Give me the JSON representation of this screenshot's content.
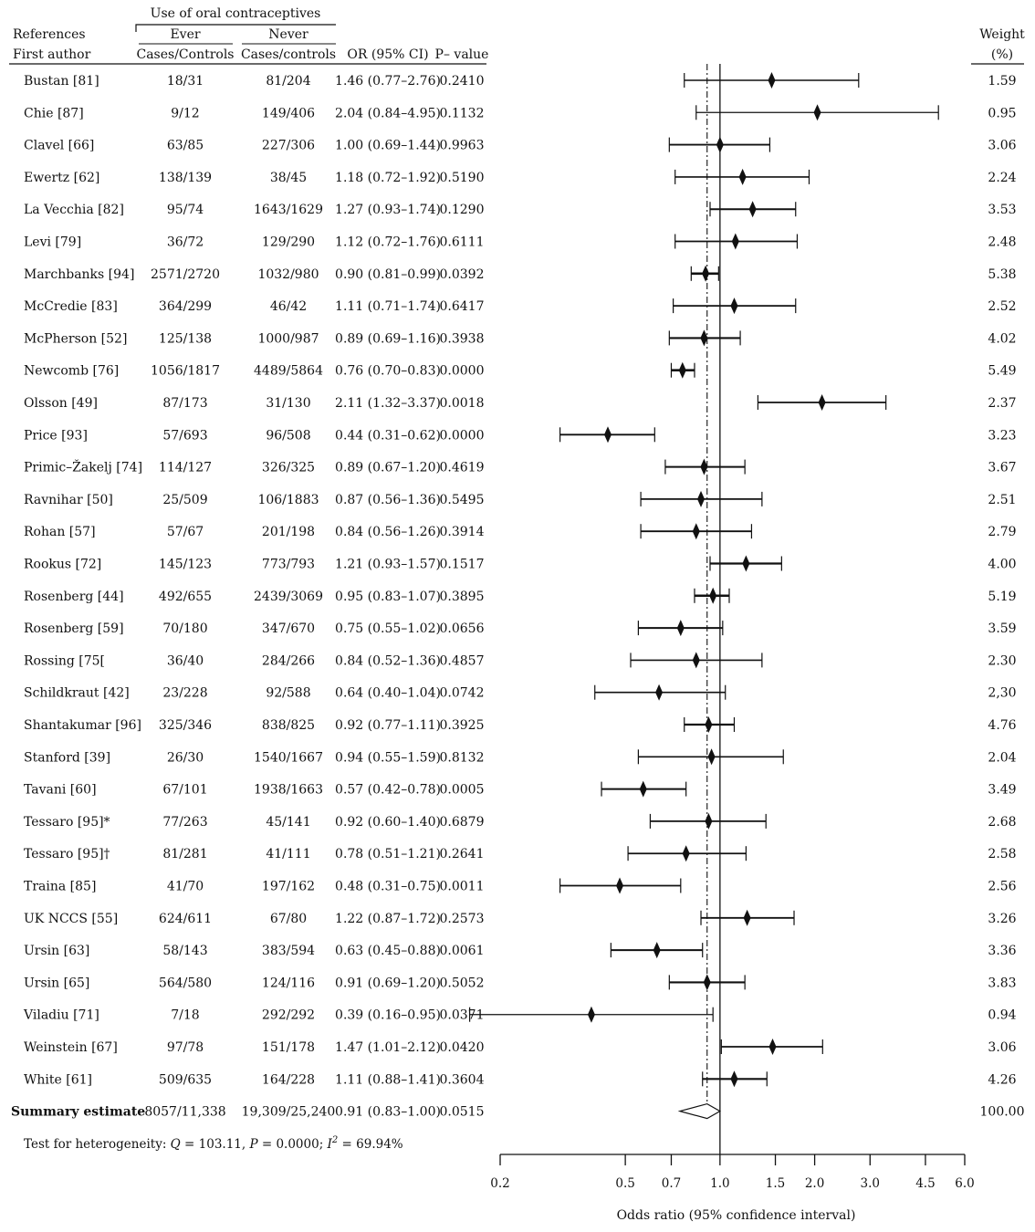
{
  "chart_data": {
    "type": "forest",
    "header": {
      "group_title": "Use of oral contraceptives",
      "references_label": "References",
      "first_author_label": "First author",
      "ever_label": "Ever",
      "never_label": "Never",
      "ever_sub": "Cases/Controls",
      "never_sub": "Cases/controls",
      "or_label": "OR (95% CI)",
      "p_label": "P– value",
      "weight_label": "Weight",
      "weight_unit": "(%)"
    },
    "studies": [
      {
        "author": "Bustan [81]",
        "ever": "18/31",
        "never": "81/204",
        "or_text": "1.46 (0.77–2.76)",
        "p": "0.2410",
        "weight": "1.59",
        "or": 1.46,
        "lo": 0.77,
        "hi": 2.76
      },
      {
        "author": "Chie [87]",
        "ever": "9/12",
        "never": "149/406",
        "or_text": "2.04 (0.84–4.95)",
        "p": "0.1132",
        "weight": "0.95",
        "or": 2.04,
        "lo": 0.84,
        "hi": 4.95
      },
      {
        "author": "Clavel [66]",
        "ever": "63/85",
        "never": "227/306",
        "or_text": "1.00 (0.69–1.44)",
        "p": "0.9963",
        "weight": "3.06",
        "or": 1.0,
        "lo": 0.69,
        "hi": 1.44
      },
      {
        "author": "Ewertz [62]",
        "ever": "138/139",
        "never": "38/45",
        "or_text": "1.18 (0.72–1.92)",
        "p": "0.5190",
        "weight": "2.24",
        "or": 1.18,
        "lo": 0.72,
        "hi": 1.92
      },
      {
        "author": "La Vecchia [82]",
        "ever": "95/74",
        "never": "1643/1629",
        "or_text": "1.27 (0.93–1.74)",
        "p": "0.1290",
        "weight": "3.53",
        "or": 1.27,
        "lo": 0.93,
        "hi": 1.74
      },
      {
        "author": "Levi [79]",
        "ever": "36/72",
        "never": "129/290",
        "or_text": "1.12 (0.72–1.76)",
        "p": "0.6111",
        "weight": "2.48",
        "or": 1.12,
        "lo": 0.72,
        "hi": 1.76
      },
      {
        "author": "Marchbanks [94]",
        "ever": "2571/2720",
        "never": "1032/980",
        "or_text": "0.90 (0.81–0.99)",
        "p": "0.0392",
        "weight": "5.38",
        "or": 0.9,
        "lo": 0.81,
        "hi": 0.99
      },
      {
        "author": "McCredie [83]",
        "ever": "364/299",
        "never": "46/42",
        "or_text": "1.11 (0.71–1.74)",
        "p": "0.6417",
        "weight": "2.52",
        "or": 1.11,
        "lo": 0.71,
        "hi": 1.74
      },
      {
        "author": "McPherson [52]",
        "ever": "125/138",
        "never": "1000/987",
        "or_text": "0.89 (0.69–1.16)",
        "p": "0.3938",
        "weight": "4.02",
        "or": 0.89,
        "lo": 0.69,
        "hi": 1.16
      },
      {
        "author": "Newcomb [76]",
        "ever": "1056/1817",
        "never": "4489/5864",
        "or_text": "0.76 (0.70–0.83)",
        "p": "0.0000",
        "weight": "5.49",
        "or": 0.76,
        "lo": 0.7,
        "hi": 0.83
      },
      {
        "author": "Olsson [49]",
        "ever": "87/173",
        "never": "31/130",
        "or_text": "2.11 (1.32–3.37)",
        "p": "0.0018",
        "weight": "2.37",
        "or": 2.11,
        "lo": 1.32,
        "hi": 3.37
      },
      {
        "author": "Price [93]",
        "ever": "57/693",
        "never": "96/508",
        "or_text": "0.44 (0.31–0.62)",
        "p": "0.0000",
        "weight": "3.23",
        "or": 0.44,
        "lo": 0.31,
        "hi": 0.62
      },
      {
        "author": "Primic–Žakelj [74]",
        "ever": "114/127",
        "never": "326/325",
        "or_text": "0.89 (0.67–1.20)",
        "p": "0.4619",
        "weight": "3.67",
        "or": 0.89,
        "lo": 0.67,
        "hi": 1.2
      },
      {
        "author": "Ravnihar [50]",
        "ever": "25/509",
        "never": "106/1883",
        "or_text": "0.87 (0.56–1.36)",
        "p": "0.5495",
        "weight": "2.51",
        "or": 0.87,
        "lo": 0.56,
        "hi": 1.36
      },
      {
        "author": "Rohan [57]",
        "ever": "57/67",
        "never": "201/198",
        "or_text": "0.84 (0.56–1.26)",
        "p": "0.3914",
        "weight": "2.79",
        "or": 0.84,
        "lo": 0.56,
        "hi": 1.26
      },
      {
        "author": "Rookus [72]",
        "ever": "145/123",
        "never": "773/793",
        "or_text": "1.21 (0.93–1.57)",
        "p": "0.1517",
        "weight": "4.00",
        "or": 1.21,
        "lo": 0.93,
        "hi": 1.57
      },
      {
        "author": "Rosenberg [44]",
        "ever": "492/655",
        "never": "2439/3069",
        "or_text": "0.95 (0.83–1.07)",
        "p": "0.3895",
        "weight": "5.19",
        "or": 0.95,
        "lo": 0.83,
        "hi": 1.07
      },
      {
        "author": "Rosenberg [59]",
        "ever": "70/180",
        "never": "347/670",
        "or_text": "0.75 (0.55–1.02)",
        "p": "0.0656",
        "weight": "3.59",
        "or": 0.75,
        "lo": 0.55,
        "hi": 1.02
      },
      {
        "author": "Rossing [75[",
        "ever": "36/40",
        "never": "284/266",
        "or_text": "0.84 (0.52–1.36)",
        "p": "0.4857",
        "weight": "2.30",
        "or": 0.84,
        "lo": 0.52,
        "hi": 1.36
      },
      {
        "author": "Schildkraut [42]",
        "ever": "23/228",
        "never": "92/588",
        "or_text": "0.64 (0.40–1.04)",
        "p": "0.0742",
        "weight": "2,30",
        "or": 0.64,
        "lo": 0.4,
        "hi": 1.04
      },
      {
        "author": "Shantakumar [96]",
        "ever": "325/346",
        "never": "838/825",
        "or_text": "0.92 (0.77–1.11)",
        "p": "0.3925",
        "weight": "4.76",
        "or": 0.92,
        "lo": 0.77,
        "hi": 1.11
      },
      {
        "author": "Stanford [39]",
        "ever": "26/30",
        "never": "1540/1667",
        "or_text": "0.94 (0.55–1.59)",
        "p": "0.8132",
        "weight": "2.04",
        "or": 0.94,
        "lo": 0.55,
        "hi": 1.59
      },
      {
        "author": "Tavani [60]",
        "ever": "67/101",
        "never": "1938/1663",
        "or_text": "0.57 (0.42–0.78)",
        "p": "0.0005",
        "weight": "3.49",
        "or": 0.57,
        "lo": 0.42,
        "hi": 0.78
      },
      {
        "author": "Tessaro [95]*",
        "ever": "77/263",
        "never": "45/141",
        "or_text": "0.92 (0.60–1.40)",
        "p": "0.6879",
        "weight": "2.68",
        "or": 0.92,
        "lo": 0.6,
        "hi": 1.4
      },
      {
        "author": "Tessaro [95]†",
        "ever": "81/281",
        "never": "41/111",
        "or_text": "0.78 (0.51–1.21)",
        "p": "0.2641",
        "weight": "2.58",
        "or": 0.78,
        "lo": 0.51,
        "hi": 1.21
      },
      {
        "author": "Traina [85]",
        "ever": "41/70",
        "never": "197/162",
        "or_text": "0.48 (0.31–0.75)",
        "p": "0.0011",
        "weight": "2.56",
        "or": 0.48,
        "lo": 0.31,
        "hi": 0.75
      },
      {
        "author": "UK NCCS [55]",
        "ever": "624/611",
        "never": "67/80",
        "or_text": "1.22 (0.87–1.72)",
        "p": "0.2573",
        "weight": "3.26",
        "or": 1.22,
        "lo": 0.87,
        "hi": 1.72
      },
      {
        "author": "Ursin [63]",
        "ever": "58/143",
        "never": "383/594",
        "or_text": "0.63 (0.45–0.88)",
        "p": "0.0061",
        "weight": "3.36",
        "or": 0.63,
        "lo": 0.45,
        "hi": 0.88
      },
      {
        "author": "Ursin [65]",
        "ever": "564/580",
        "never": "124/116",
        "or_text": "0.91 (0.69–1.20)",
        "p": "0.5052",
        "weight": "3.83",
        "or": 0.91,
        "lo": 0.69,
        "hi": 1.2
      },
      {
        "author": "Viladiu [71]",
        "ever": "7/18",
        "never": "292/292",
        "or_text": "0.39 (0.16–0.95)",
        "p": "0.0371",
        "weight": "0.94",
        "or": 0.39,
        "lo": 0.16,
        "hi": 0.95
      },
      {
        "author": "Weinstein [67]",
        "ever": "97/78",
        "never": "151/178",
        "or_text": "1.47 (1.01–2.12)",
        "p": "0.0420",
        "weight": "3.06",
        "or": 1.47,
        "lo": 1.01,
        "hi": 2.12
      },
      {
        "author": "White [61]",
        "ever": "509/635",
        "never": "164/228",
        "or_text": "1.11 (0.88–1.41)",
        "p": "0.3604",
        "weight": "4.26",
        "or": 1.11,
        "lo": 0.88,
        "hi": 1.41
      }
    ],
    "summary": {
      "label": "Summary estimate",
      "ever": "8057/11,338",
      "never": "19,309/25,240",
      "or_text": "0.91 (0.83–1.00)",
      "p": "0.0515",
      "weight": "100.00",
      "or": 0.91,
      "lo": 0.83,
      "hi": 1.0
    },
    "heterogeneity": {
      "prefix": "Test for heterogeneity: ",
      "q_sym": "Q",
      "q_val": " = 103.11, ",
      "p_sym": "P",
      "p_val": " = 0.0000; ",
      "i_sym": "I",
      "i_sup": "2",
      "i_val": " = 69.94%"
    },
    "x_axis": {
      "label": "Odds ratio (95% confidence interval)",
      "scale": "log",
      "range": [
        0.2,
        6.0
      ],
      "ticks": [
        {
          "value": 0.2,
          "label": "0.2"
        },
        {
          "value": 0.5,
          "label": "0.5"
        },
        {
          "value": 0.7,
          "label": "0.7"
        },
        {
          "value": 1.0,
          "label": "1.0"
        },
        {
          "value": 1.5,
          "label": "1.5"
        },
        {
          "value": 2.0,
          "label": "2.0"
        },
        {
          "value": 3.0,
          "label": "3.0"
        },
        {
          "value": 4.5,
          "label": "4.5"
        },
        {
          "value": 6.0,
          "label": "6.0"
        }
      ],
      "reference_line": 1.0,
      "summary_line": 0.91
    }
  }
}
